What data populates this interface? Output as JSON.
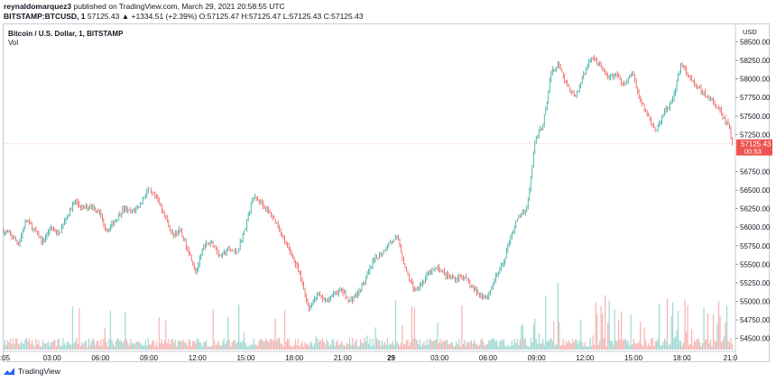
{
  "header": {
    "publisher_user": "reynaldomarquez3",
    "publisher_text": " published on TradingView.com, March 29, 2021 20:58:55 UTC",
    "symbol_line": "BITSTAMP:BTCUSD, 1",
    "change_arrow": "▲",
    "quote_line": "57125.43 ▲ +1334.51 (+2.39%) O:57125.47 H:57125.47 L:57125.43 C:57125.43"
  },
  "legend": {
    "title": "Bitcoin / U.S. Dollar, 1, BITSTAMP",
    "volume": "Vol"
  },
  "price_scale": {
    "unit": "USD"
  },
  "last_price": {
    "value": "57125.43",
    "countdown": "00:53"
  },
  "footer": {
    "brand": "TradingView",
    "logo_icon": "tradingview-logo-icon"
  },
  "colors": {
    "up": "#26a69a",
    "down": "#ef5350",
    "vol_up": "#9fd8d2",
    "vol_down": "#f5b3b1",
    "last_price_bg": "#ef5350"
  },
  "chart_data": {
    "type": "line",
    "title": "Bitcoin / U.S. Dollar, 1, BITSTAMP",
    "y_axis_ticks": [
      "58500.00",
      "58250.00",
      "58000.00",
      "57750.00",
      "57500.00",
      "57250.00",
      "56750.00",
      "56500.00",
      "56250.00",
      "56000.00",
      "55750.00",
      "55500.00",
      "55250.00",
      "55000.00",
      "54750.00",
      "54500.00"
    ],
    "y_tick_values": [
      58500,
      58250,
      58000,
      57750,
      57500,
      57250,
      56750,
      56500,
      56250,
      56000,
      55750,
      55500,
      55250,
      55000,
      54750,
      54500
    ],
    "x_axis_ticks": [
      ":05",
      "03:00",
      "06:00",
      "09:00",
      "12:00",
      "15:00",
      "18:00",
      "21:00",
      "29",
      "03:00",
      "06:00",
      "09:00",
      "12:00",
      "15:00",
      "18:00",
      "21:0"
    ],
    "x_tick_hours": [
      0.083,
      3,
      6,
      9,
      12,
      15,
      18,
      21,
      24,
      27,
      30,
      33,
      36,
      39,
      42,
      45
    ],
    "xlim_hours": [
      0,
      45.2
    ],
    "ylim": [
      54350,
      58700
    ],
    "last_price": 57125.43,
    "series": [
      {
        "points": [
          [
            0,
            55950
          ],
          [
            0.5,
            55900
          ],
          [
            1,
            55780
          ],
          [
            1.5,
            56100
          ],
          [
            2,
            55950
          ],
          [
            2.5,
            55800
          ],
          [
            3,
            56000
          ],
          [
            3.5,
            55900
          ],
          [
            4,
            56150
          ],
          [
            4.5,
            56350
          ],
          [
            5,
            56250
          ],
          [
            5.5,
            56300
          ],
          [
            6,
            56200
          ],
          [
            6.5,
            55950
          ],
          [
            7,
            56100
          ],
          [
            7.5,
            56250
          ],
          [
            8,
            56200
          ],
          [
            8.5,
            56300
          ],
          [
            9,
            56500
          ],
          [
            9.5,
            56400
          ],
          [
            10,
            56200
          ],
          [
            10.5,
            55900
          ],
          [
            11,
            55950
          ],
          [
            11.5,
            55700
          ],
          [
            12,
            55400
          ],
          [
            12.5,
            55750
          ],
          [
            13,
            55800
          ],
          [
            13.5,
            55600
          ],
          [
            14,
            55700
          ],
          [
            14.5,
            55650
          ],
          [
            15,
            55950
          ],
          [
            15.5,
            56400
          ],
          [
            16,
            56350
          ],
          [
            16.5,
            56200
          ],
          [
            17,
            56050
          ],
          [
            17.5,
            55800
          ],
          [
            18,
            55600
          ],
          [
            18.5,
            55300
          ],
          [
            19,
            54900
          ],
          [
            19.5,
            55100
          ],
          [
            20,
            55000
          ],
          [
            20.5,
            55100
          ],
          [
            21,
            55150
          ],
          [
            21.5,
            55000
          ],
          [
            22,
            55100
          ],
          [
            22.5,
            55300
          ],
          [
            23,
            55550
          ],
          [
            23.5,
            55650
          ],
          [
            24,
            55800
          ],
          [
            24.5,
            55850
          ],
          [
            25,
            55400
          ],
          [
            25.5,
            55150
          ],
          [
            26,
            55250
          ],
          [
            26.5,
            55400
          ],
          [
            27,
            55450
          ],
          [
            27.5,
            55350
          ],
          [
            28,
            55300
          ],
          [
            28.5,
            55350
          ],
          [
            29,
            55200
          ],
          [
            29.5,
            55100
          ],
          [
            30,
            55050
          ],
          [
            30.5,
            55300
          ],
          [
            31,
            55500
          ],
          [
            31.5,
            55900
          ],
          [
            32,
            56150
          ],
          [
            32.5,
            56250
          ],
          [
            33,
            57200
          ],
          [
            33.5,
            57400
          ],
          [
            34,
            58100
          ],
          [
            34.5,
            58200
          ],
          [
            35,
            57900
          ],
          [
            35.5,
            57750
          ],
          [
            36,
            58050
          ],
          [
            36.5,
            58300
          ],
          [
            37,
            58200
          ],
          [
            37.5,
            58000
          ],
          [
            38,
            58050
          ],
          [
            38.5,
            57900
          ],
          [
            39,
            58100
          ],
          [
            39.5,
            57700
          ],
          [
            40,
            57500
          ],
          [
            40.5,
            57300
          ],
          [
            41,
            57550
          ],
          [
            41.5,
            57700
          ],
          [
            42,
            58200
          ],
          [
            42.5,
            58050
          ],
          [
            43,
            57900
          ],
          [
            43.5,
            57800
          ],
          [
            44,
            57700
          ],
          [
            44.5,
            57550
          ],
          [
            45,
            57350
          ],
          [
            45.2,
            57125.43
          ]
        ]
      }
    ]
  }
}
